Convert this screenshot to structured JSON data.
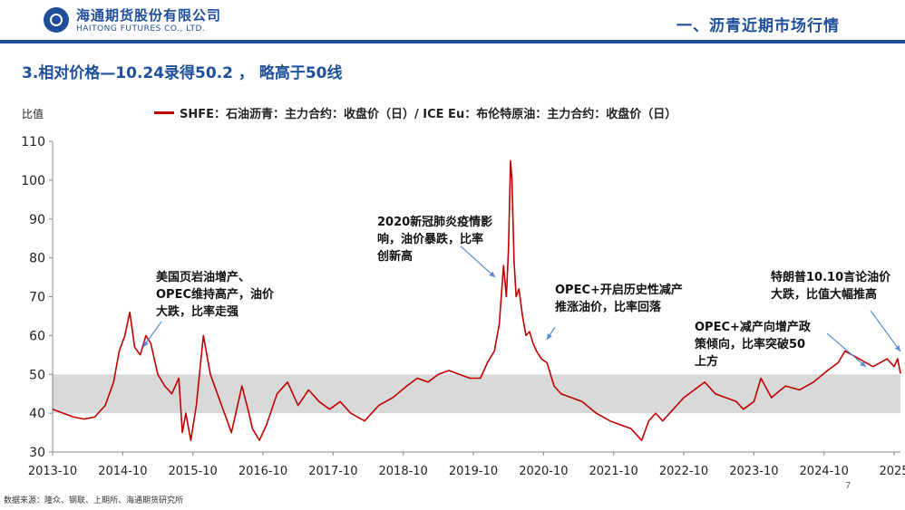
{
  "header": {
    "logo_cn": "海通期货股份有限公司",
    "logo_en": "HAITONG FUTURES CO., LTD.",
    "section": "一、沥青近期市场行情"
  },
  "title": "3.相对价格—10.24录得50.2 ， 略高于50线",
  "source": "数据来源：隆众、钢联、上期所、海通期货研究所",
  "page_number": "7",
  "colors": {
    "brand": "#1f4e9a",
    "series": "#c00000",
    "band": "#d9d9d9"
  },
  "annotations": [
    {
      "text": "2020新冠肺炎疫情影\n响，油价暴跌，比率\n创新高"
    },
    {
      "text": "美国页岩油增产、\nOPEC维持高产，油价\n大跌，比率走强"
    },
    {
      "text": "OPEC+开启历史性减产\n推涨油价，比率回落"
    },
    {
      "text": "特朗普10.10言论油价\n大跌，比值大幅推高"
    },
    {
      "text": "OPEC+减产向增产政\n策倾向，比率突破50\n上方"
    }
  ],
  "chart_data": {
    "type": "line",
    "ylabel": "比值",
    "ylim": [
      30,
      110
    ],
    "yticks": [
      "30",
      "40",
      "50",
      "60",
      "70",
      "80",
      "90",
      "100",
      "110"
    ],
    "xticks": [
      "2013-10",
      "2014-10",
      "2015-10",
      "2016-10",
      "2017-10",
      "2018-10",
      "2019-10",
      "2020-10",
      "2021-10",
      "2022-10",
      "2023-10",
      "2024-10",
      "2025"
    ],
    "xlim": [
      2013.75,
      2025.84
    ],
    "band": [
      40,
      50
    ],
    "series": [
      {
        "name": "SHFE：石油沥青：主力合约：收盘价（日）/ ICE Eu：布伦特原油：主力合约：收盘价（日）",
        "x": [
          2013.75,
          2013.9,
          2014.05,
          2014.2,
          2014.35,
          2014.5,
          2014.62,
          2014.7,
          2014.78,
          2014.85,
          2014.92,
          2015.0,
          2015.08,
          2015.15,
          2015.25,
          2015.35,
          2015.45,
          2015.55,
          2015.6,
          2015.65,
          2015.72,
          2015.8,
          2015.9,
          2016.0,
          2016.1,
          2016.2,
          2016.3,
          2016.35,
          2016.45,
          2016.55,
          2016.6,
          2016.7,
          2016.8,
          2016.95,
          2017.1,
          2017.25,
          2017.4,
          2017.55,
          2017.7,
          2017.85,
          2018.0,
          2018.2,
          2018.4,
          2018.6,
          2018.8,
          2018.95,
          2019.1,
          2019.25,
          2019.4,
          2019.55,
          2019.7,
          2019.85,
          2019.95,
          2020.05,
          2020.12,
          2020.18,
          2020.22,
          2020.25,
          2020.28,
          2020.3,
          2020.33,
          2020.36,
          2020.4,
          2020.45,
          2020.5,
          2020.55,
          2020.6,
          2020.65,
          2020.72,
          2020.8,
          2020.9,
          2021.0,
          2021.15,
          2021.3,
          2021.5,
          2021.7,
          2021.85,
          2022.0,
          2022.15,
          2022.25,
          2022.35,
          2022.45,
          2022.6,
          2022.75,
          2022.9,
          2023.05,
          2023.2,
          2023.35,
          2023.5,
          2023.6,
          2023.75,
          2023.85,
          2024.0,
          2024.2,
          2024.4,
          2024.6,
          2024.8,
          2024.95,
          2025.05,
          2025.15,
          2025.25,
          2025.35,
          2025.45,
          2025.55,
          2025.65,
          2025.75,
          2025.8,
          2025.84
        ],
        "y": [
          41,
          40,
          39,
          38.5,
          39,
          42,
          48,
          56,
          60,
          66,
          57,
          55,
          60,
          58,
          50,
          47,
          45,
          49,
          35,
          40,
          33,
          42,
          60,
          50,
          45,
          40,
          35,
          39,
          47,
          40,
          36,
          33,
          37,
          45,
          48,
          42,
          46,
          43,
          41,
          43,
          40,
          38,
          42,
          44,
          47,
          49,
          48,
          50,
          51,
          50,
          49,
          49,
          53,
          56,
          63,
          78,
          70,
          82,
          105,
          100,
          79,
          70,
          72,
          65,
          60,
          61,
          58,
          56,
          54,
          53,
          47,
          45,
          44,
          43,
          40,
          38,
          37,
          36,
          33,
          38,
          40,
          38,
          41,
          44,
          46,
          48,
          45,
          44,
          43,
          41,
          43,
          49,
          44,
          47,
          46,
          48,
          51,
          53,
          56,
          55,
          54,
          53,
          52,
          53,
          54,
          52,
          54,
          50.2
        ]
      }
    ]
  }
}
